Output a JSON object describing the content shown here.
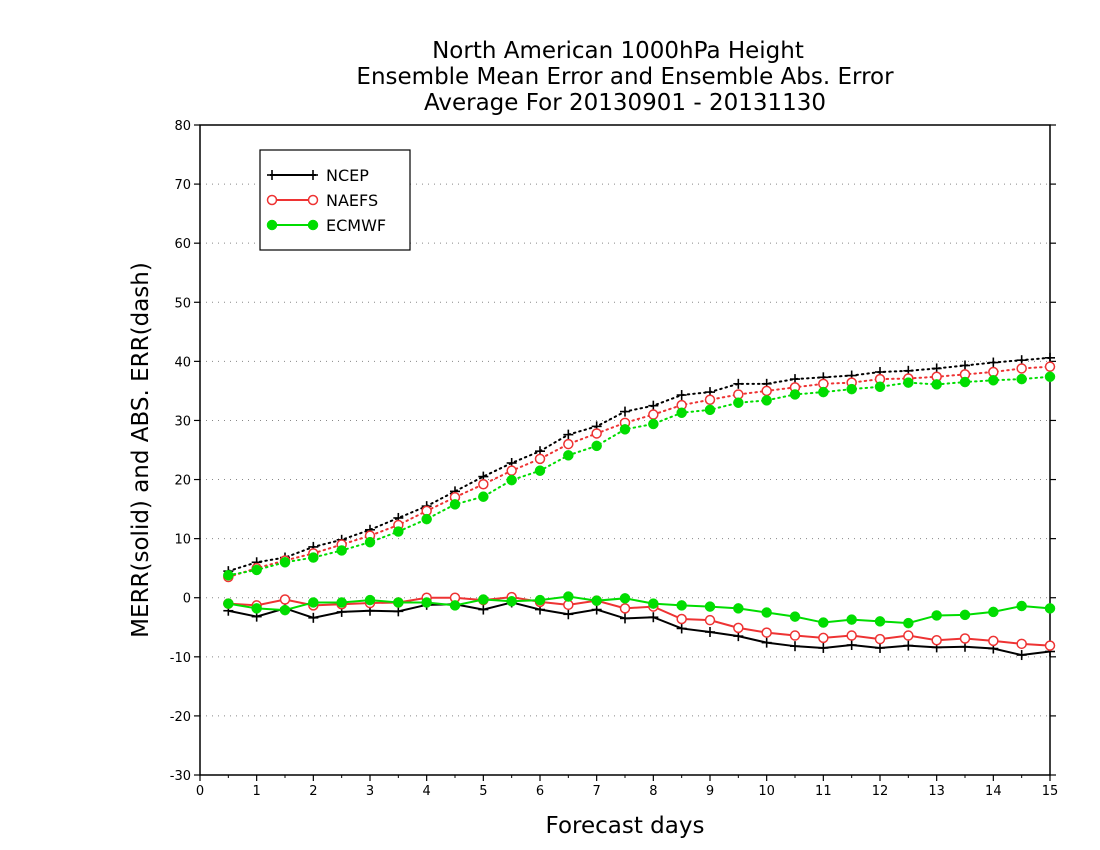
{
  "chart_data": {
    "type": "line",
    "title": [
      "North American 1000hPa Height",
      "Ensemble Mean Error and Ensemble Abs. Error",
      "Average For 20130901 - 20131130"
    ],
    "xlabel": "Forecast days",
    "ylabel": "MERR(solid) and ABS. ERR(dash)",
    "xlim": [
      0,
      15
    ],
    "ylim": [
      -30,
      80
    ],
    "xticks": [
      0,
      1,
      2,
      3,
      4,
      5,
      6,
      7,
      8,
      9,
      10,
      11,
      12,
      13,
      14,
      15
    ],
    "yticks": [
      -30,
      -20,
      -10,
      0,
      10,
      20,
      30,
      40,
      50,
      60,
      70,
      80
    ],
    "grid": "horizontal dotted",
    "legend_position": "top-left",
    "x": [
      0.5,
      1,
      1.5,
      2,
      2.5,
      3,
      3.5,
      4,
      4.5,
      5,
      5.5,
      6,
      6.5,
      7,
      7.5,
      8,
      8.5,
      9,
      9.5,
      10,
      10.5,
      11,
      11.5,
      12,
      12.5,
      13,
      13.5,
      14,
      14.5,
      15
    ],
    "series": [
      {
        "name": "NCEP",
        "color": "#000000",
        "marker": "plus",
        "mean_error": [
          -2.2,
          -3.2,
          -1.8,
          -3.4,
          -2.4,
          -2.2,
          -2.3,
          -1.2,
          -1.1,
          -2.0,
          -0.8,
          -2.0,
          -2.8,
          -2.0,
          -3.5,
          -3.3,
          -5.2,
          -5.8,
          -6.5,
          -7.6,
          -8.2,
          -8.5,
          -8.0,
          -8.5,
          -8.1,
          -8.4,
          -8.3,
          -8.6,
          -9.7,
          -9.1
        ],
        "abs_error": [
          4.5,
          6.0,
          6.8,
          8.6,
          9.8,
          11.5,
          13.5,
          15.5,
          18.0,
          20.5,
          22.8,
          24.8,
          27.6,
          29.0,
          31.5,
          32.5,
          34.3,
          34.8,
          36.2,
          36.2,
          37.0,
          37.3,
          37.6,
          38.2,
          38.4,
          38.8,
          39.3,
          39.8,
          40.2,
          40.6
        ]
      },
      {
        "name": "NAEFS",
        "color": "#ee3333",
        "marker": "open-circle",
        "mean_error": [
          -1.0,
          -1.3,
          -0.3,
          -1.3,
          -1.1,
          -0.9,
          -0.8,
          0.0,
          0.0,
          -0.4,
          0.1,
          -0.7,
          -1.2,
          -0.5,
          -1.8,
          -1.5,
          -3.6,
          -3.8,
          -5.1,
          -5.9,
          -6.4,
          -6.8,
          -6.4,
          -7.0,
          -6.4,
          -7.2,
          -6.9,
          -7.3,
          -7.8,
          -8.1
        ],
        "abs_error": [
          3.5,
          5.0,
          6.3,
          7.5,
          9.0,
          10.5,
          12.3,
          14.7,
          17.0,
          19.2,
          21.5,
          23.5,
          26.0,
          27.8,
          29.6,
          31.0,
          32.6,
          33.5,
          34.4,
          35.0,
          35.6,
          36.2,
          36.4,
          37.0,
          37.1,
          37.4,
          37.8,
          38.2,
          38.8,
          39.1
        ]
      },
      {
        "name": "ECMWF",
        "color": "#00dd00",
        "marker": "filled-circle",
        "mean_error": [
          -1.0,
          -1.8,
          -2.1,
          -0.8,
          -0.8,
          -0.4,
          -0.8,
          -0.8,
          -1.3,
          -0.3,
          -0.6,
          -0.4,
          0.2,
          -0.5,
          -0.1,
          -1.0,
          -1.3,
          -1.5,
          -1.8,
          -2.5,
          -3.2,
          -4.2,
          -3.7,
          -4.0,
          -4.3,
          -3.0,
          -2.9,
          -2.4,
          -1.4,
          -1.8
        ],
        "abs_error": [
          3.8,
          4.7,
          6.0,
          6.8,
          8.0,
          9.4,
          11.2,
          13.3,
          15.8,
          17.1,
          19.9,
          21.5,
          24.1,
          25.7,
          28.5,
          29.4,
          31.3,
          31.8,
          33.0,
          33.4,
          34.4,
          34.8,
          35.3,
          35.7,
          36.4,
          36.1,
          36.5,
          36.8,
          37.0,
          37.4
        ]
      }
    ]
  }
}
